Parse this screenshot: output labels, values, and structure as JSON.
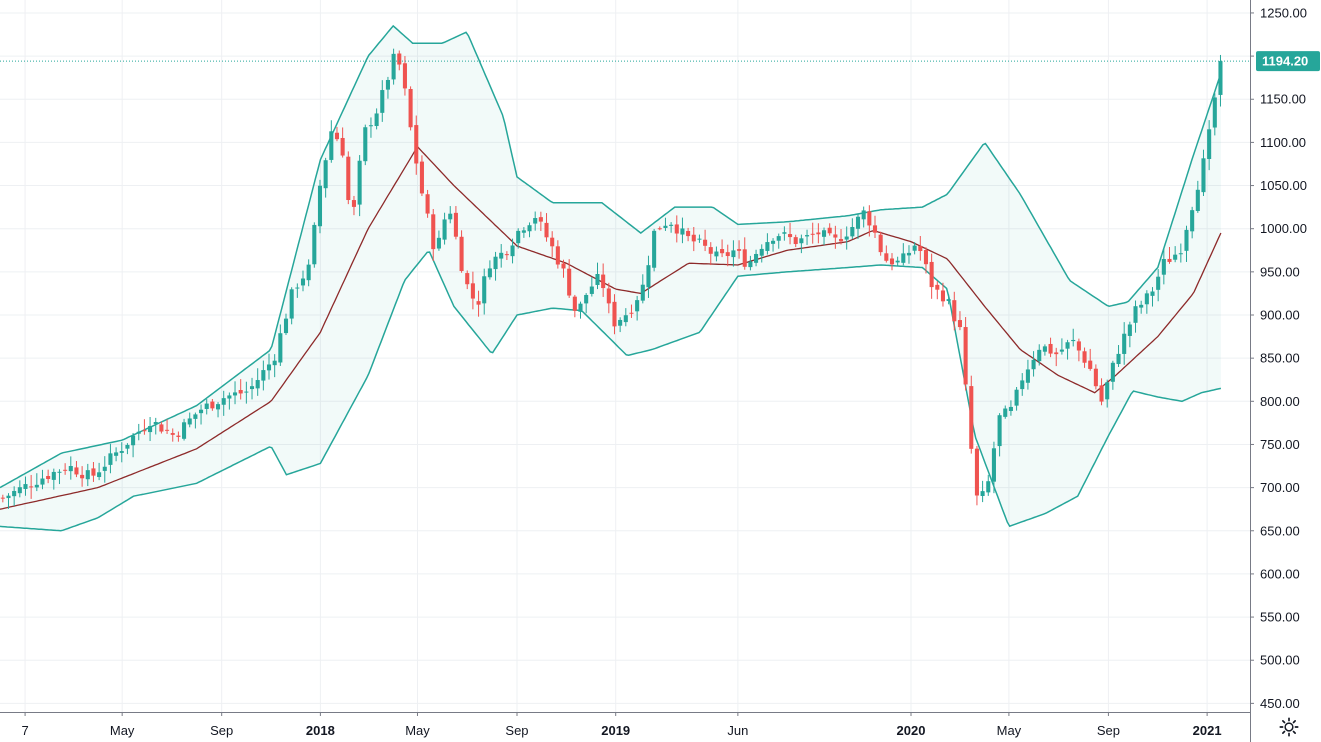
{
  "colors": {
    "up": "#26a69a",
    "down": "#ef5350",
    "band": "#26a69a",
    "band_fill": "#26a69a",
    "basis": "#8d2a2a",
    "grid": "#eef0f3",
    "axis": "#787b86"
  },
  "settings": {
    "icon": "gear-icon"
  },
  "chart_data": {
    "type": "candlestick",
    "title": "",
    "xlabel": "",
    "ylabel": "",
    "ylim": [
      440,
      1265
    ],
    "grid": true,
    "last_price": 1194.2,
    "last_price_label": "1194.20",
    "y_ticks": [
      {
        "value": 450,
        "label": "450.00"
      },
      {
        "value": 500,
        "label": "500.00"
      },
      {
        "value": 550,
        "label": "550.00"
      },
      {
        "value": 600,
        "label": "600.00"
      },
      {
        "value": 650,
        "label": "650.00"
      },
      {
        "value": 700,
        "label": "700.00"
      },
      {
        "value": 750,
        "label": "750.00"
      },
      {
        "value": 800,
        "label": "800.00"
      },
      {
        "value": 850,
        "label": "850.00"
      },
      {
        "value": 900,
        "label": "900.00"
      },
      {
        "value": 950,
        "label": "950.00"
      },
      {
        "value": 1000,
        "label": "1000.00"
      },
      {
        "value": 1050,
        "label": "1050.00"
      },
      {
        "value": 1100,
        "label": "1100.00"
      },
      {
        "value": 1150,
        "label": "1150.00"
      },
      {
        "value": 1200,
        "label": "1200.00"
      },
      {
        "value": 1250,
        "label": "1250.00"
      }
    ],
    "x_ticks": [
      {
        "date": "2017-01-01",
        "label": "7",
        "bold": false
      },
      {
        "date": "2017-05-01",
        "label": "May",
        "bold": false
      },
      {
        "date": "2017-09-01",
        "label": "Sep",
        "bold": false
      },
      {
        "date": "2018-01-01",
        "label": "2018",
        "bold": true
      },
      {
        "date": "2018-05-01",
        "label": "May",
        "bold": false
      },
      {
        "date": "2018-09-01",
        "label": "Sep",
        "bold": false
      },
      {
        "date": "2019-01-01",
        "label": "2019",
        "bold": true
      },
      {
        "date": "2019-06-01",
        "label": "Jun",
        "bold": false
      },
      {
        "date": "2020-01-01",
        "label": "2020",
        "bold": true
      },
      {
        "date": "2020-05-01",
        "label": "May",
        "bold": false
      },
      {
        "date": "2020-09-01",
        "label": "Sep",
        "bold": false
      },
      {
        "date": "2021-01-01",
        "label": "2021",
        "bold": true
      }
    ],
    "x_range": [
      "2016-12-01",
      "2021-02-23"
    ],
    "close_anchors": [
      [
        "2016-12-01",
        688
      ],
      [
        "2017-01-15",
        710
      ],
      [
        "2017-02-20",
        725
      ],
      [
        "2017-03-20",
        712
      ],
      [
        "2017-05-01",
        750
      ],
      [
        "2017-06-01",
        778
      ],
      [
        "2017-07-01",
        760
      ],
      [
        "2017-08-01",
        790
      ],
      [
        "2017-09-01",
        805
      ],
      [
        "2017-10-01",
        812
      ],
      [
        "2017-11-01",
        850
      ],
      [
        "2017-11-25",
        930
      ],
      [
        "2017-12-15",
        955
      ],
      [
        "2017-12-28",
        1050
      ],
      [
        "2018-01-12",
        1118
      ],
      [
        "2018-01-25",
        1090
      ],
      [
        "2018-02-05",
        1000
      ],
      [
        "2018-02-20",
        1110
      ],
      [
        "2018-03-10",
        1140
      ],
      [
        "2018-04-01",
        1205
      ],
      [
        "2018-04-10",
        1170
      ],
      [
        "2018-04-20",
        1110
      ],
      [
        "2018-05-01",
        1050
      ],
      [
        "2018-05-20",
        970
      ],
      [
        "2018-06-05",
        1030
      ],
      [
        "2018-06-25",
        940
      ],
      [
        "2018-07-10",
        910
      ],
      [
        "2018-07-25",
        960
      ],
      [
        "2018-08-15",
        975
      ],
      [
        "2018-09-01",
        1000
      ],
      [
        "2018-09-20",
        1015
      ],
      [
        "2018-10-10",
        980
      ],
      [
        "2018-10-25",
        950
      ],
      [
        "2018-11-10",
        900
      ],
      [
        "2018-11-25",
        930
      ],
      [
        "2018-12-10",
        945
      ],
      [
        "2018-12-25",
        890
      ],
      [
        "2019-01-15",
        905
      ],
      [
        "2019-02-01",
        935
      ],
      [
        "2019-02-15",
        1000
      ],
      [
        "2019-03-05",
        1010
      ],
      [
        "2019-03-25",
        990
      ],
      [
        "2019-04-15",
        980
      ],
      [
        "2019-05-05",
        965
      ],
      [
        "2019-05-25",
        975
      ],
      [
        "2019-06-10",
        958
      ],
      [
        "2019-06-25",
        980
      ],
      [
        "2019-07-15",
        995
      ],
      [
        "2019-08-10",
        985
      ],
      [
        "2019-09-05",
        995
      ],
      [
        "2019-09-25",
        985
      ],
      [
        "2019-10-15",
        1000
      ],
      [
        "2019-11-01",
        1020
      ],
      [
        "2019-11-12",
        1000
      ],
      [
        "2019-11-25",
        965
      ],
      [
        "2019-12-15",
        960
      ],
      [
        "2020-01-05",
        985
      ],
      [
        "2020-01-25",
        930
      ],
      [
        "2020-02-10",
        920
      ],
      [
        "2020-02-28",
        880
      ],
      [
        "2020-03-10",
        760
      ],
      [
        "2020-03-20",
        680
      ],
      [
        "2020-04-01",
        700
      ],
      [
        "2020-04-15",
        780
      ],
      [
        "2020-05-01",
        790
      ],
      [
        "2020-05-15",
        830
      ],
      [
        "2020-06-05",
        865
      ],
      [
        "2020-06-25",
        855
      ],
      [
        "2020-07-15",
        870
      ],
      [
        "2020-08-05",
        840
      ],
      [
        "2020-08-20",
        800
      ],
      [
        "2020-09-10",
        860
      ],
      [
        "2020-10-01",
        905
      ],
      [
        "2020-10-20",
        925
      ],
      [
        "2020-11-05",
        960
      ],
      [
        "2020-11-25",
        975
      ],
      [
        "2020-12-15",
        1045
      ],
      [
        "2020-12-28",
        1090
      ],
      [
        "2021-01-10",
        1170
      ],
      [
        "2021-01-18",
        1194.2
      ]
    ],
    "basis_anchors": [
      [
        "2016-12-01",
        675
      ],
      [
        "2017-04-01",
        700
      ],
      [
        "2017-08-01",
        745
      ],
      [
        "2017-11-01",
        800
      ],
      [
        "2018-01-01",
        880
      ],
      [
        "2018-03-01",
        1000
      ],
      [
        "2018-05-01",
        1095
      ],
      [
        "2018-06-15",
        1050
      ],
      [
        "2018-09-01",
        980
      ],
      [
        "2018-11-01",
        960
      ],
      [
        "2019-01-01",
        930
      ],
      [
        "2019-02-01",
        925
      ],
      [
        "2019-04-01",
        960
      ],
      [
        "2019-06-01",
        958
      ],
      [
        "2019-08-01",
        975
      ],
      [
        "2019-10-15",
        985
      ],
      [
        "2019-11-15",
        998
      ],
      [
        "2020-01-01",
        985
      ],
      [
        "2020-02-15",
        965
      ],
      [
        "2020-04-01",
        910
      ],
      [
        "2020-05-15",
        860
      ],
      [
        "2020-07-01",
        830
      ],
      [
        "2020-08-15",
        810
      ],
      [
        "2020-09-10",
        830
      ],
      [
        "2020-11-01",
        875
      ],
      [
        "2020-12-15",
        925
      ],
      [
        "2021-01-18",
        995
      ]
    ],
    "upper_anchors": [
      [
        "2016-12-01",
        700
      ],
      [
        "2017-02-15",
        740
      ],
      [
        "2017-05-01",
        755
      ],
      [
        "2017-08-01",
        795
      ],
      [
        "2017-11-01",
        860
      ],
      [
        "2018-01-01",
        1080
      ],
      [
        "2018-03-01",
        1200
      ],
      [
        "2018-04-01",
        1235
      ],
      [
        "2018-04-25",
        1215
      ],
      [
        "2018-06-01",
        1215
      ],
      [
        "2018-07-01",
        1228
      ],
      [
        "2018-08-15",
        1130
      ],
      [
        "2018-09-01",
        1060
      ],
      [
        "2018-10-15",
        1030
      ],
      [
        "2018-12-15",
        1030
      ],
      [
        "2019-02-01",
        995
      ],
      [
        "2019-03-15",
        1025
      ],
      [
        "2019-05-01",
        1025
      ],
      [
        "2019-06-01",
        1005
      ],
      [
        "2019-08-01",
        1008
      ],
      [
        "2019-10-15",
        1015
      ],
      [
        "2019-11-25",
        1022
      ],
      [
        "2020-01-15",
        1025
      ],
      [
        "2020-02-15",
        1040
      ],
      [
        "2020-04-01",
        1100
      ],
      [
        "2020-05-15",
        1040
      ],
      [
        "2020-07-15",
        940
      ],
      [
        "2020-09-01",
        910
      ],
      [
        "2020-09-25",
        915
      ],
      [
        "2020-11-01",
        955
      ],
      [
        "2020-12-15",
        1085
      ],
      [
        "2021-01-18",
        1180
      ]
    ],
    "lower_anchors": [
      [
        "2016-12-01",
        655
      ],
      [
        "2017-02-15",
        650
      ],
      [
        "2017-04-01",
        665
      ],
      [
        "2017-05-15",
        690
      ],
      [
        "2017-08-01",
        705
      ],
      [
        "2017-11-01",
        748
      ],
      [
        "2017-11-20",
        715
      ],
      [
        "2018-01-01",
        728
      ],
      [
        "2018-03-01",
        830
      ],
      [
        "2018-04-15",
        940
      ],
      [
        "2018-05-15",
        975
      ],
      [
        "2018-06-15",
        910
      ],
      [
        "2018-08-01",
        855
      ],
      [
        "2018-09-01",
        900
      ],
      [
        "2018-10-15",
        908
      ],
      [
        "2018-11-20",
        905
      ],
      [
        "2019-01-15",
        853
      ],
      [
        "2019-02-15",
        860
      ],
      [
        "2019-04-15",
        880
      ],
      [
        "2019-06-01",
        945
      ],
      [
        "2019-08-01",
        950
      ],
      [
        "2019-10-15",
        955
      ],
      [
        "2019-11-25",
        958
      ],
      [
        "2020-01-15",
        955
      ],
      [
        "2020-02-15",
        930
      ],
      [
        "2020-03-20",
        760
      ],
      [
        "2020-05-01",
        655
      ],
      [
        "2020-06-15",
        670
      ],
      [
        "2020-07-25",
        690
      ],
      [
        "2020-09-01",
        760
      ],
      [
        "2020-10-01",
        812
      ],
      [
        "2020-11-01",
        805
      ],
      [
        "2020-12-01",
        800
      ],
      [
        "2020-12-25",
        810
      ],
      [
        "2021-01-18",
        815
      ]
    ]
  }
}
